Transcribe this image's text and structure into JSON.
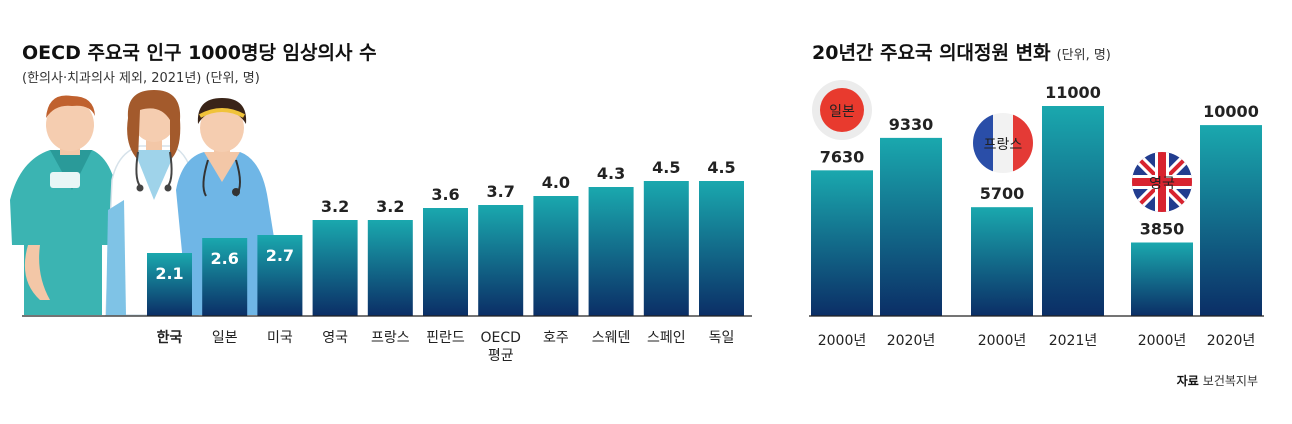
{
  "left_chart": {
    "title": "OECD 주요국 인구 1000명당 임상의사 수",
    "subtitle": "(한의사·치과의사 제외, 2021년) (단위, 명)"
  },
  "right_chart": {
    "title": "20년간 주요국 의대정원 변화",
    "unit": "(단위, 명)"
  },
  "source": {
    "label": "자료",
    "value": "보건복지부"
  },
  "colors": {
    "bar_top": "#1aa8ae",
    "bar_bottom": "#0b2e66",
    "axis": "#222222",
    "value_label": "#222222",
    "value_label_inside": "#ffffff"
  },
  "chart_data": [
    {
      "type": "bar",
      "title": "OECD 주요국 인구 1000명당 임상의사 수",
      "subtitle": "(한의사·치과의사 제외, 2021년) (단위, 명)",
      "categories": [
        "한국",
        "일본",
        "미국",
        "영국",
        "프랑스",
        "핀란드",
        "OECD 평균",
        "호주",
        "스웨덴",
        "스페인",
        "독일"
      ],
      "values": [
        2.1,
        2.6,
        2.7,
        3.2,
        3.2,
        3.6,
        3.7,
        4.0,
        4.3,
        4.5,
        4.5
      ],
      "value_labels": [
        "2.1",
        "2.6",
        "2.7",
        "3.2",
        "3.2",
        "3.6",
        "3.7",
        "4.0",
        "4.3",
        "4.5",
        "4.5"
      ],
      "highlight": "한국",
      "ylim": [
        0,
        5
      ],
      "grid": false,
      "xlabel": "",
      "ylabel": ""
    },
    {
      "type": "bar",
      "title": "20년간 주요국 의대정원 변화",
      "unit": "(단위, 명)",
      "groups": [
        {
          "name": "일본",
          "categories": [
            "2000년",
            "2020년"
          ],
          "values": [
            7630,
            9330
          ],
          "flag": "japan-flag-icon"
        },
        {
          "name": "프랑스",
          "categories": [
            "2000년",
            "2021년"
          ],
          "values": [
            5700,
            11000
          ],
          "flag": "france-flag-icon"
        },
        {
          "name": "영국",
          "categories": [
            "2000년",
            "2020년"
          ],
          "values": [
            3850,
            10000
          ],
          "flag": "uk-flag-icon"
        }
      ],
      "ylim": [
        0,
        12000
      ],
      "grid": false,
      "xlabel": "",
      "ylabel": ""
    }
  ]
}
